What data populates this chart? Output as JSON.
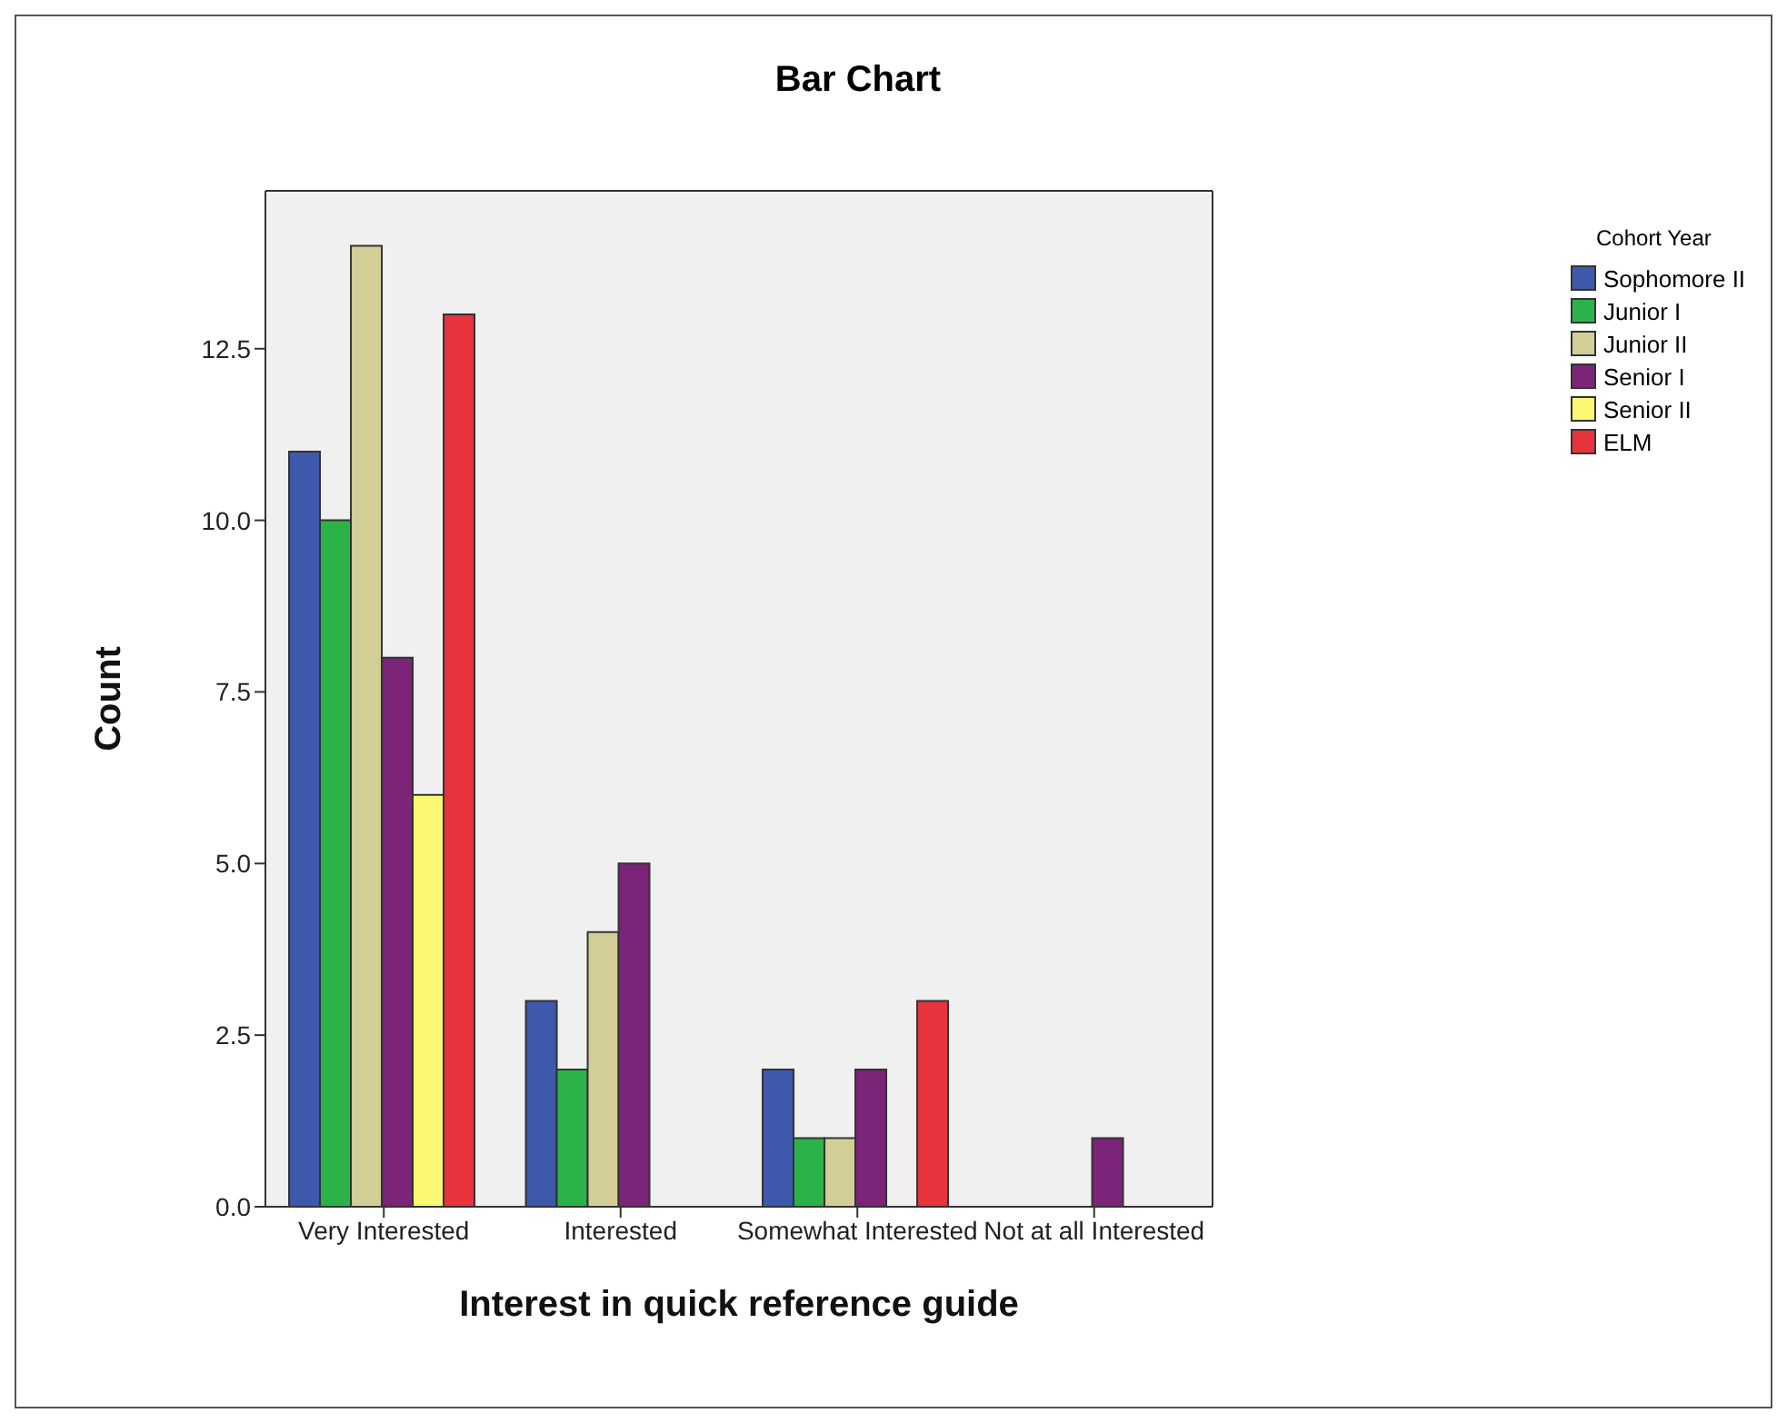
{
  "chart_data": {
    "type": "bar",
    "title": "Bar Chart",
    "xlabel": "Interest in quick reference guide",
    "ylabel": "Count",
    "legend_title": "Cohort Year",
    "legend": "right",
    "categories": [
      "Very Interested",
      "Interested",
      "Somewhat Interested",
      "Not at all Interested"
    ],
    "series": [
      {
        "name": "Sophomore II",
        "color": "#3e58ac",
        "values": [
          11,
          3,
          2,
          null
        ]
      },
      {
        "name": "Junior I",
        "color": "#2bb34a",
        "values": [
          10,
          2,
          1,
          null
        ]
      },
      {
        "name": "Junior II",
        "color": "#d3ce97",
        "values": [
          14,
          4,
          1,
          null
        ]
      },
      {
        "name": "Senior I",
        "color": "#7b2478",
        "values": [
          8,
          5,
          2,
          1
        ]
      },
      {
        "name": "Senior II",
        "color": "#fbf873",
        "values": [
          6,
          null,
          null,
          null
        ]
      },
      {
        "name": "ELM",
        "color": "#e8333c",
        "values": [
          13,
          null,
          3,
          null
        ]
      }
    ],
    "ylim": [
      0,
      14.8
    ],
    "yticks": [
      {
        "value": 0,
        "label": "0.0"
      },
      {
        "value": 2.5,
        "label": "2.5"
      },
      {
        "value": 5,
        "label": "5.0"
      },
      {
        "value": 7.5,
        "label": "7.5"
      },
      {
        "value": 10,
        "label": "10.0"
      },
      {
        "value": 12.5,
        "label": "12.5"
      }
    ]
  }
}
